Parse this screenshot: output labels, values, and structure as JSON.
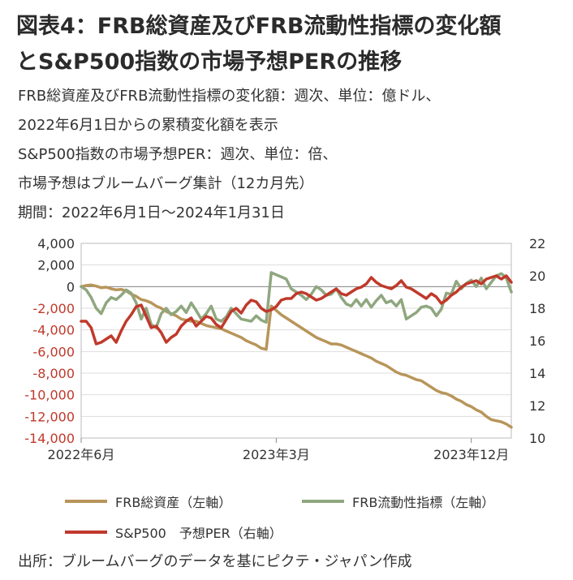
{
  "title_line1": "図表4：FRB総資産及びFRB流動性指標の変化額",
  "title_line2": "とS&P500指数の市場予想PERの推移",
  "subtitle_lines": [
    "FRB総資産及びFRB流動性指標の変化額：週次、単位：億ドル、",
    "2022年6月1日からの累積変化額を表示",
    "S&P500指数の市場予想PER：週次、単位：倍、",
    "市場予想はブルームバーグ集計（12カ月先）",
    "期間：2022年6月1日～2024年1月31日"
  ],
  "source": "出所：ブルームバーグのデータを基にピクテ・ジャパン作成",
  "colors": {
    "frb_assets": "#b8955a",
    "liquidity": "#8fa77f",
    "per": "#c0392b",
    "left_axis_negative": "#c0392b",
    "grid": "#dddddd"
  },
  "chart_data": {
    "type": "line",
    "x_ticks": [
      "2022年6月",
      "2023年3月",
      "2023年12月"
    ],
    "x_tick_positions": [
      0,
      39,
      78
    ],
    "y_left": {
      "ylim": [
        -14000,
        4000
      ],
      "ticks": [
        "4,000",
        "2,000",
        "0",
        "-2,000",
        "-4,000",
        "-6,000",
        "-8,000",
        "-10,000",
        "-12,000",
        "-14,000"
      ]
    },
    "y_right": {
      "ylim": [
        10,
        22
      ],
      "ticks": [
        "22",
        "20",
        "18",
        "16",
        "14",
        "12",
        "10"
      ]
    },
    "legend": [
      "FRB総資産（左軸）",
      "FRB流動性指標（左軸）",
      "S&P500　予想PER（右軸）"
    ],
    "series": [
      {
        "name": "FRB総資産（左軸）",
        "axis": "left",
        "values": [
          0,
          100,
          150,
          50,
          -100,
          -50,
          -200,
          -300,
          -250,
          -400,
          -700,
          -900,
          -1200,
          -1300,
          -1500,
          -1800,
          -2000,
          -2300,
          -2500,
          -2700,
          -3000,
          -3100,
          -3200,
          -3200,
          -3400,
          -3600,
          -3700,
          -3800,
          -3900,
          -4100,
          -4300,
          -4500,
          -4700,
          -5000,
          -5200,
          -5400,
          -5700,
          -5800,
          -1800,
          -2200,
          -2600,
          -2900,
          -3200,
          -3500,
          -3800,
          -4100,
          -4400,
          -4700,
          -4900,
          -5100,
          -5300,
          -5300,
          -5400,
          -5600,
          -5800,
          -6000,
          -6200,
          -6400,
          -6600,
          -6900,
          -7100,
          -7300,
          -7600,
          -7900,
          -8100,
          -8200,
          -8400,
          -8600,
          -8700,
          -9000,
          -9300,
          -9600,
          -9800,
          -9900,
          -10100,
          -10400,
          -10600,
          -10900,
          -11100,
          -11400,
          -11600,
          -12000,
          -12300,
          -12400,
          -12500,
          -12700,
          -13000
        ]
      },
      {
        "name": "FRB流動性指標（左軸）",
        "axis": "left",
        "values": [
          0,
          -300,
          -1000,
          -2000,
          -2500,
          -1500,
          -1000,
          -1200,
          -800,
          -300,
          -600,
          -1500,
          -3000,
          -2000,
          -3500,
          -3800,
          -2500,
          -2000,
          -2600,
          -2300,
          -1800,
          -2400,
          -1500,
          -2200,
          -3000,
          -2500,
          -1800,
          -3000,
          -3200,
          -2800,
          -2000,
          -2500,
          -3000,
          -3100,
          -3200,
          -2700,
          -3100,
          -3300,
          1300,
          1100,
          900,
          700,
          -200,
          -500,
          -800,
          -1200,
          -700,
          0,
          -300,
          -800,
          -700,
          -200,
          -1000,
          -1600,
          -1800,
          -1200,
          -1800,
          -1200,
          -1900,
          -1300,
          -800,
          -1500,
          -1300,
          -1800,
          -1200,
          -3000,
          -2700,
          -2400,
          -1900,
          -1800,
          -2000,
          -2700,
          -2100,
          -600,
          -700,
          500,
          -200,
          300,
          600,
          0,
          800,
          -200,
          400,
          1000,
          1200,
          800,
          -500
        ]
      },
      {
        "name": "S&P500　予想PER（右軸）",
        "axis": "right",
        "values": [
          17.2,
          17.2,
          16.8,
          15.8,
          15.9,
          16.1,
          16.3,
          15.9,
          16.6,
          17.2,
          17.6,
          18.1,
          18.2,
          17.5,
          16.8,
          16.9,
          16.5,
          15.9,
          16.2,
          16.4,
          16.9,
          17.2,
          17.4,
          16.9,
          17.2,
          17.5,
          17.4,
          17.0,
          16.8,
          17.3,
          17.8,
          18.0,
          17.7,
          18.2,
          18.5,
          18.4,
          18.0,
          17.8,
          17.9,
          18.1,
          18.5,
          18.6,
          18.6,
          18.9,
          19.0,
          18.9,
          18.7,
          18.5,
          18.6,
          18.8,
          19.0,
          19.2,
          18.9,
          18.8,
          19.0,
          19.2,
          19.3,
          19.5,
          19.9,
          19.6,
          19.4,
          19.3,
          19.2,
          19.4,
          19.7,
          19.3,
          19.2,
          19.0,
          18.8,
          18.6,
          18.9,
          18.7,
          18.3,
          18.5,
          18.8,
          19.0,
          19.3,
          19.5,
          19.6,
          19.7,
          19.5,
          19.8,
          19.9,
          20.0,
          19.8,
          20.0,
          19.6
        ]
      }
    ]
  }
}
